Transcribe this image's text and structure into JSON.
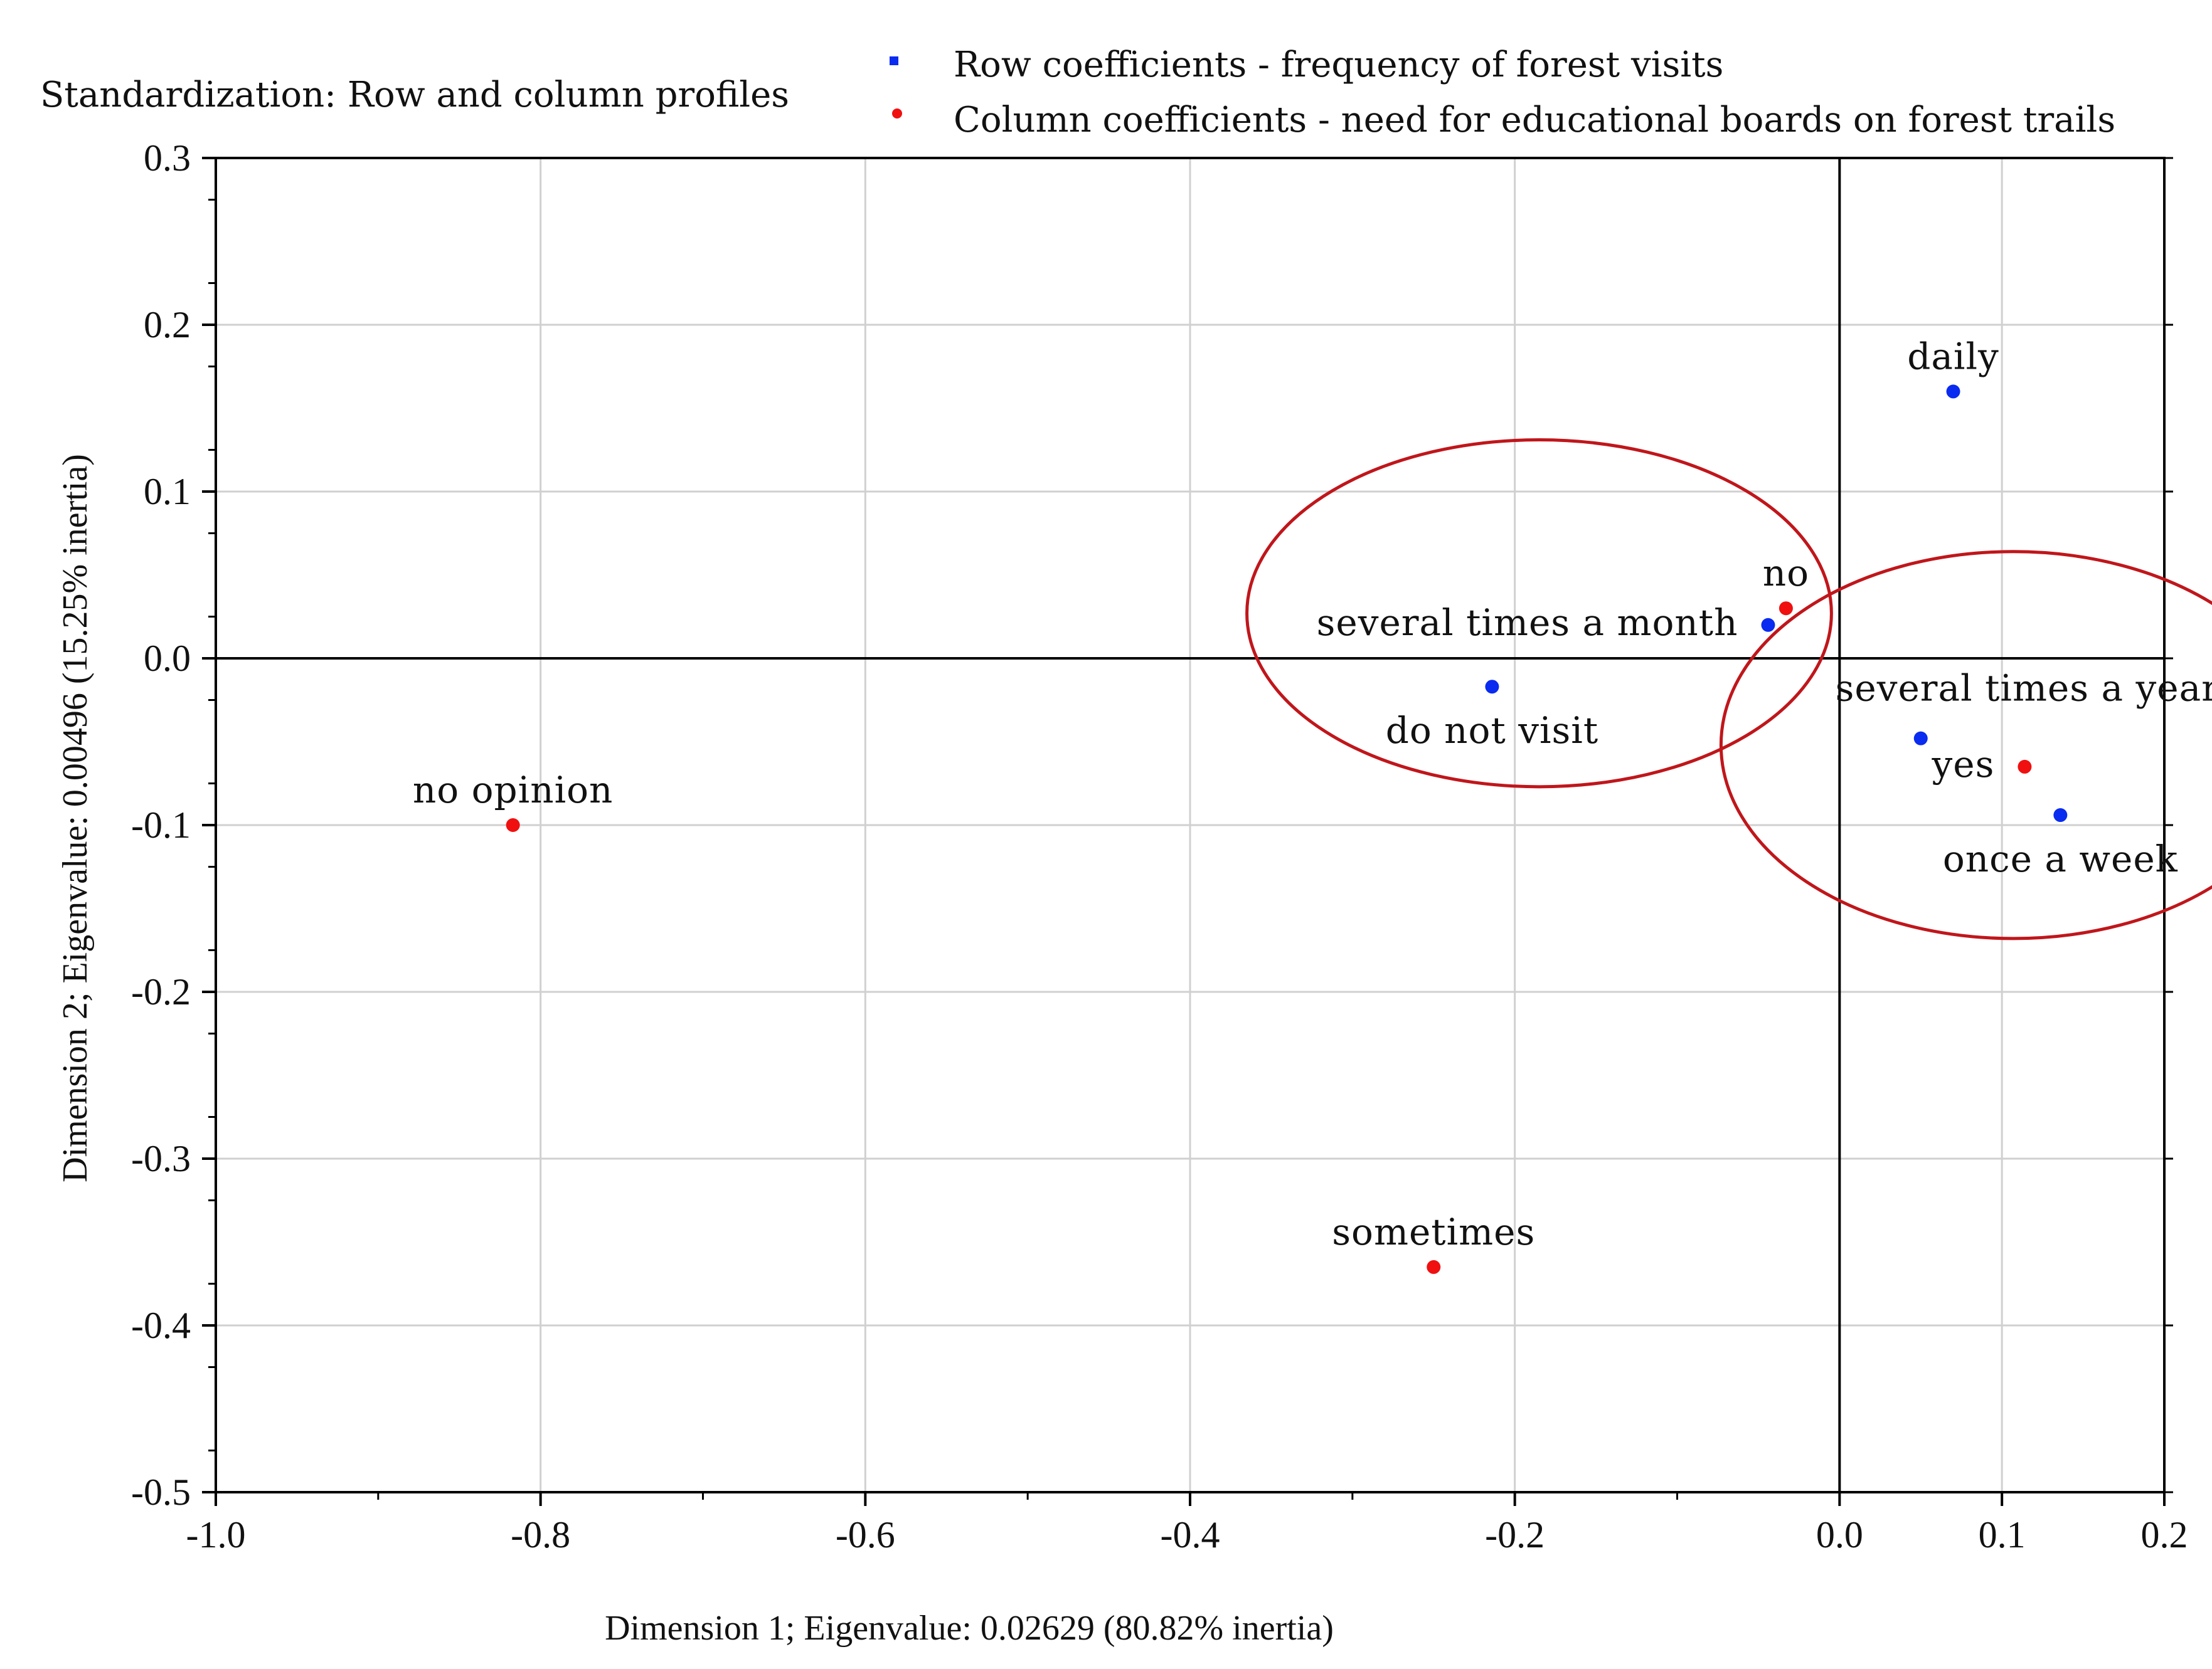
{
  "chart_data": {
    "type": "scatter",
    "standardization_note": "Standardization: Row and column profiles",
    "xlabel": "Dimension 1; Eigenvalue: 0.02629 (80.82% inertia)",
    "ylabel": "Dimension 2; Eigenvalue: 0.00496 (15.25% inertia)",
    "xlim": [
      -1.0,
      0.2
    ],
    "ylim": [
      -0.5,
      0.3
    ],
    "x_ticks": [
      "-1.0",
      "-0.8",
      "-0.6",
      "-0.4",
      "-0.2",
      "0.0",
      "0.1",
      "0.2"
    ],
    "x_tick_values": [
      -1.0,
      -0.8,
      -0.6,
      -0.4,
      -0.2,
      0.0,
      0.1,
      0.2
    ],
    "y_ticks": [
      "0.3",
      "0.2",
      "0.1",
      "0.0",
      "-0.1",
      "-0.2",
      "-0.3",
      "-0.4",
      "-0.5"
    ],
    "y_tick_values": [
      0.3,
      0.2,
      0.1,
      0.0,
      -0.1,
      -0.2,
      -0.3,
      -0.4,
      -0.5
    ],
    "grid": true,
    "legend_position": "top-right",
    "colors": {
      "row": "#0a2bf0",
      "column": "#f01010",
      "ellipse": "#c0161b",
      "grid": "#d0d0d0",
      "axis": "#000000"
    },
    "series": [
      {
        "name": "Row coefficients - frequency of forest visits",
        "color": "#0a2bf0",
        "points": [
          {
            "label": "daily",
            "x": 0.07,
            "y": 0.16,
            "label_pos": "above"
          },
          {
            "label": "several times a month",
            "x": -0.044,
            "y": 0.02,
            "label_pos": "left"
          },
          {
            "label": "do not visit",
            "x": -0.214,
            "y": -0.017,
            "label_pos": "below"
          },
          {
            "label": "several times a year",
            "x": 0.05,
            "y": -0.048,
            "label_pos": "above-right"
          },
          {
            "label": "once a week",
            "x": 0.136,
            "y": -0.094,
            "label_pos": "below"
          }
        ]
      },
      {
        "name": "Column coefficients - need for educational boards on forest trails",
        "color": "#f01010",
        "points": [
          {
            "label": "no",
            "x": -0.033,
            "y": 0.03,
            "label_pos": "above"
          },
          {
            "label": "yes",
            "x": 0.114,
            "y": -0.065,
            "label_pos": "left"
          },
          {
            "label": "no opinion",
            "x": -0.817,
            "y": -0.1,
            "label_pos": "above"
          },
          {
            "label": "sometimes",
            "x": -0.25,
            "y": -0.365,
            "label_pos": "above"
          }
        ]
      }
    ],
    "ellipses": [
      {
        "cx": -0.185,
        "cy": 0.027,
        "rx": 0.18,
        "ry": 0.104
      },
      {
        "cx": 0.107,
        "cy": -0.052,
        "rx": 0.18,
        "ry": 0.116
      }
    ]
  }
}
